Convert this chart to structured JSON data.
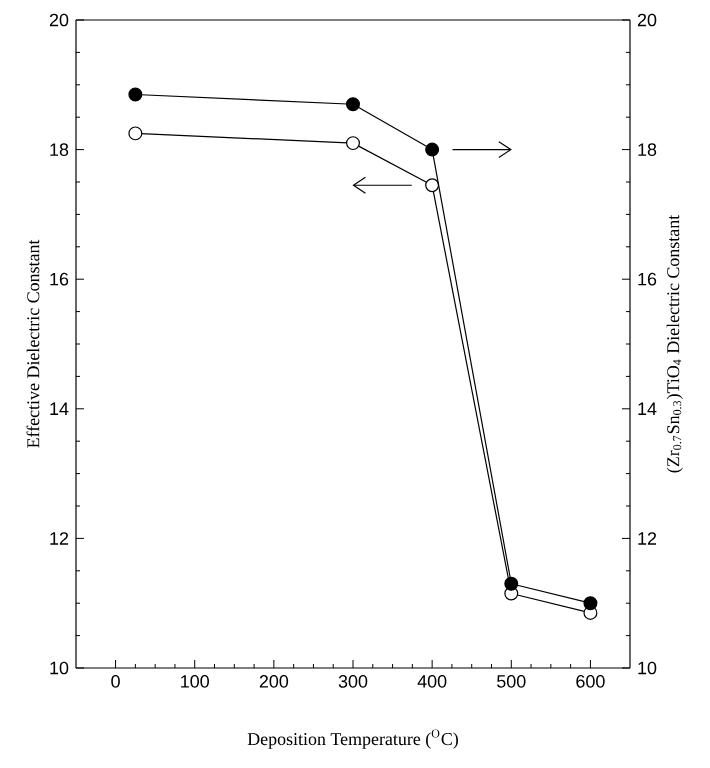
{
  "chart_data": {
    "type": "line",
    "xlabel": "Deposition Temperature ($^{O}$C)",
    "ylabel": "Effective Dielectric Constant",
    "y2label": "(Zr$_{0.7}$Sn$_{0.3}$)TiO$_{4}$ Dielectric Constant",
    "xlim": [
      -50,
      650
    ],
    "xticks": [
      0,
      100,
      200,
      300,
      400,
      500,
      600
    ],
    "ylim": [
      10,
      20
    ],
    "yticks": [
      10,
      12,
      14,
      16,
      18,
      20
    ],
    "y2lim": [
      10,
      20
    ],
    "y2ticks": [
      10,
      12,
      14,
      16,
      18,
      20
    ],
    "marker": "circle",
    "line_style": "solid",
    "grid": false,
    "series": [
      {
        "color": "#ffffff",
        "axis": "y",
        "x": [
          25,
          300,
          400,
          500,
          600
        ],
        "values": [
          18.25,
          18.1,
          17.45,
          11.15,
          10.85
        ]
      },
      {
        "color": "#000000",
        "axis": "y2",
        "x": [
          25,
          300,
          400,
          500,
          600
        ],
        "values": [
          18.85,
          18.7,
          18.0,
          11.3,
          11.0
        ]
      }
    ]
  }
}
